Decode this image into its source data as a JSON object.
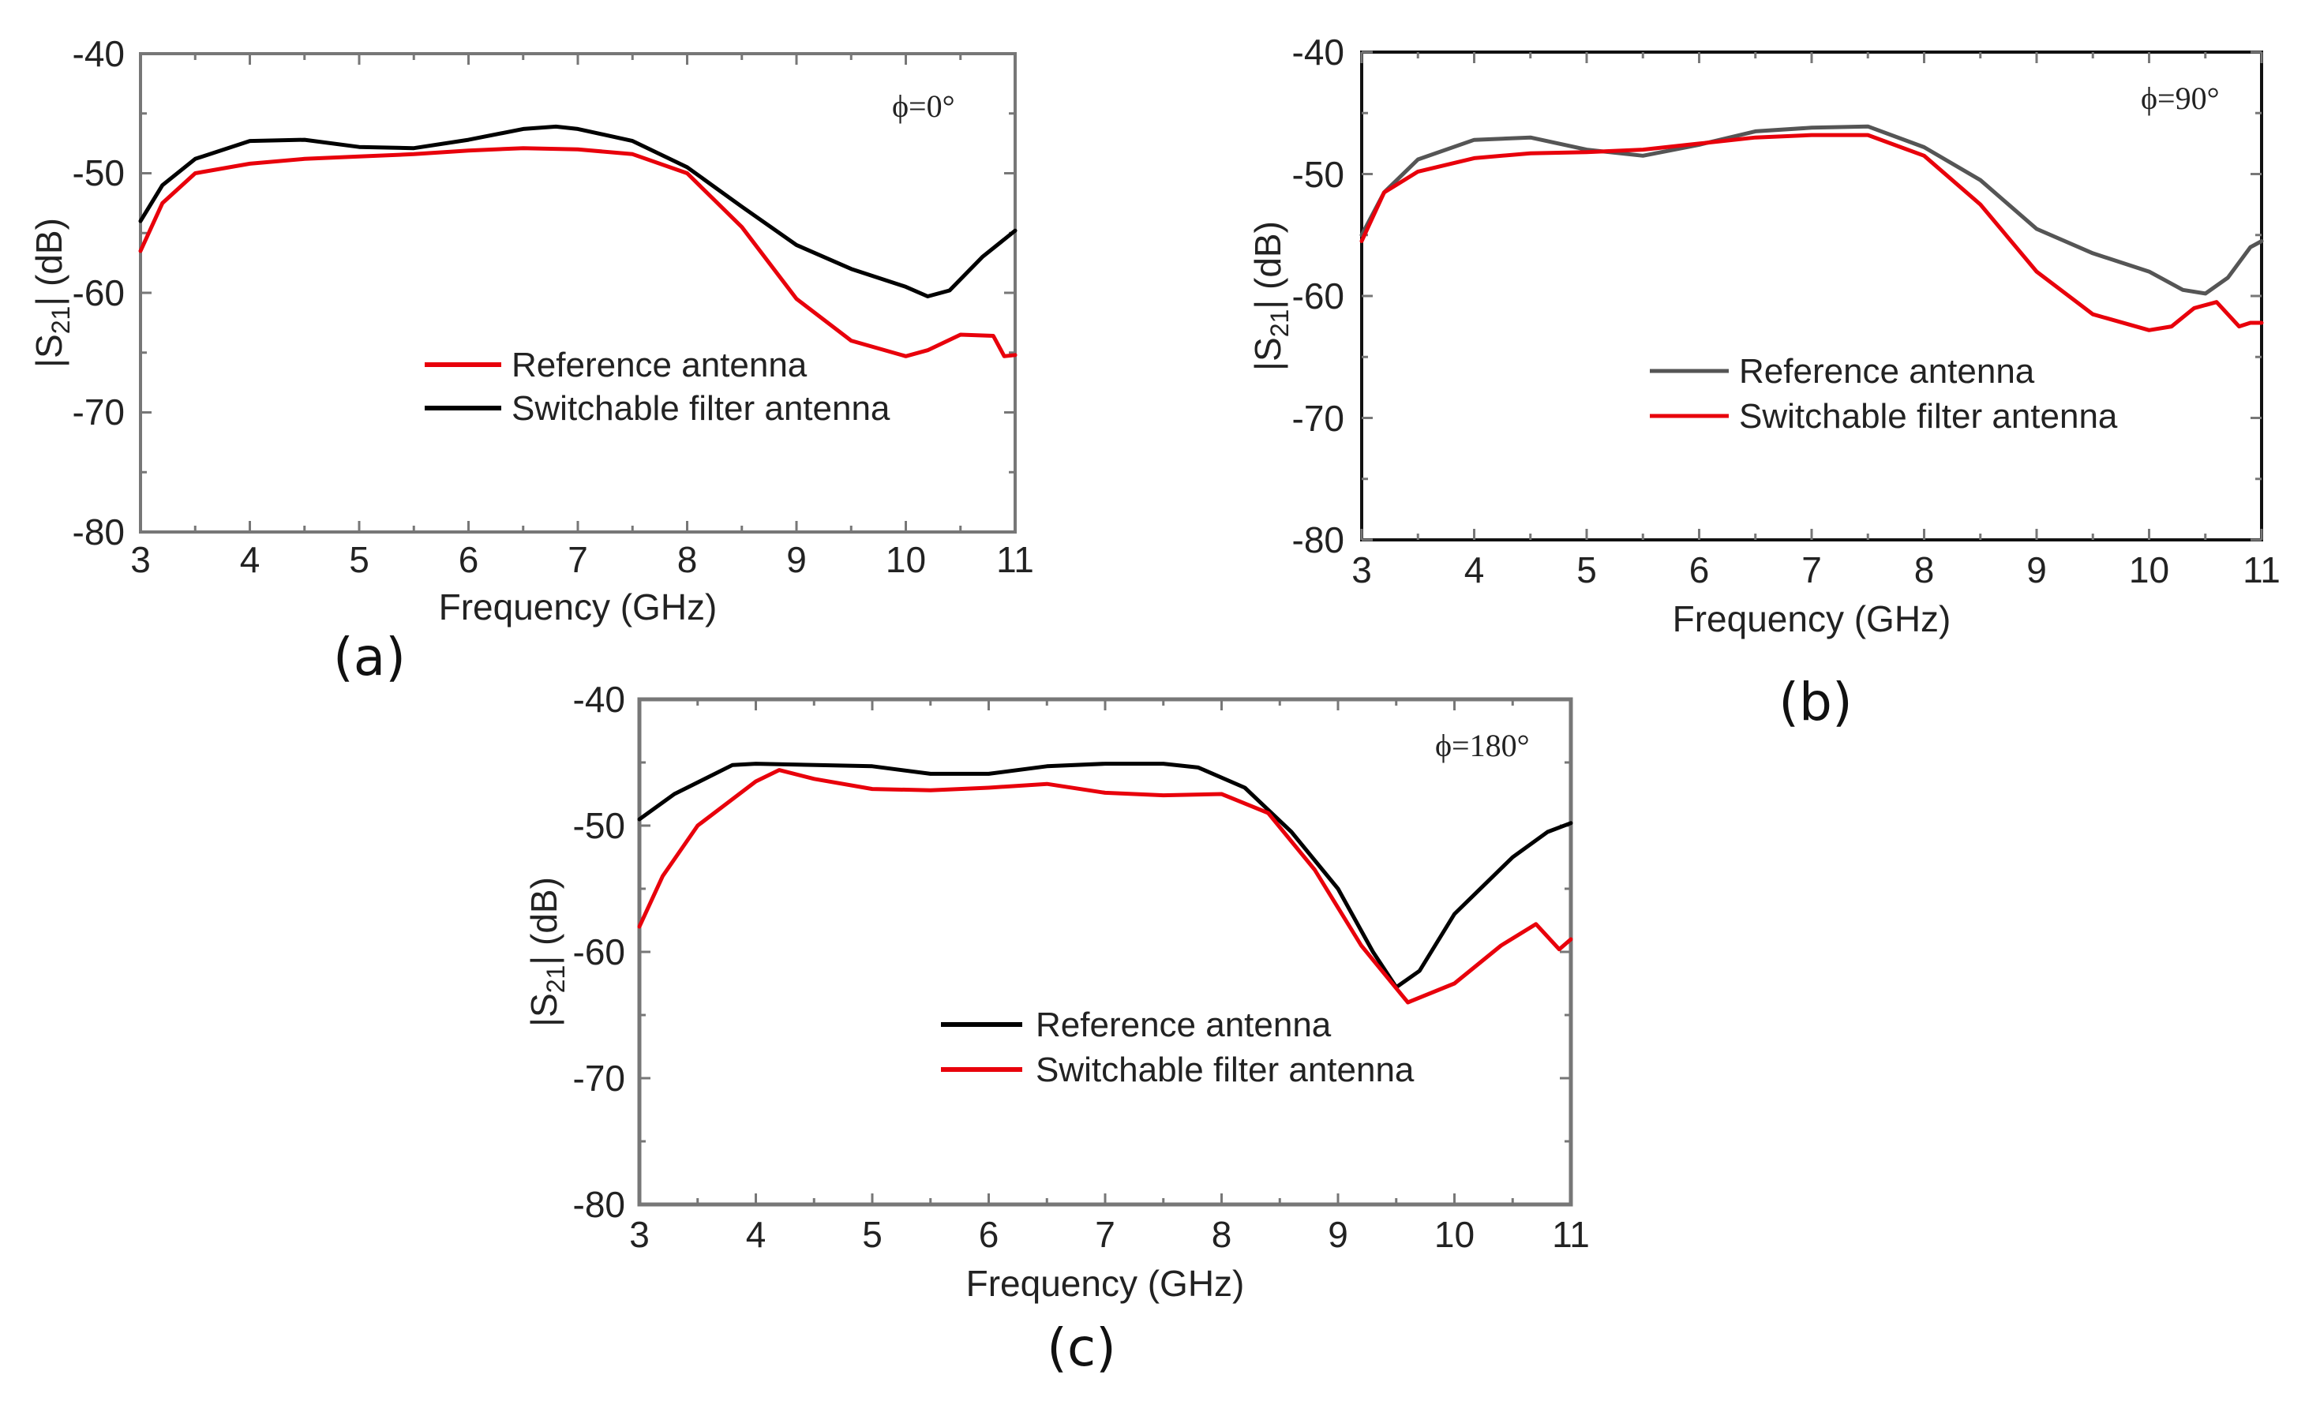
{
  "chart_data": [
    {
      "type": "line",
      "panel_label": "(a)",
      "annotation": "ϕ=0°",
      "xlabel": "Frequency (GHz)",
      "ylabel": "|S21| (dB)",
      "xlim": [
        3,
        11
      ],
      "ylim": [
        -80,
        -40
      ],
      "xticks": [
        "3",
        "4",
        "5",
        "6",
        "7",
        "8",
        "9",
        "10",
        "11"
      ],
      "yticks": [
        "-80",
        "-70",
        "-60",
        "-50",
        "-40"
      ],
      "series": [
        {
          "name": "Reference antenna",
          "color": "#e8000b",
          "x": [
            3.0,
            3.2,
            3.5,
            4.0,
            4.5,
            5.0,
            5.5,
            6.0,
            6.5,
            7.0,
            7.5,
            8.0,
            8.5,
            9.0,
            9.5,
            10.0,
            10.2,
            10.5,
            10.8,
            10.9,
            11.0
          ],
          "y": [
            -56.5,
            -52.5,
            -50.0,
            -49.2,
            -48.8,
            -48.6,
            -48.4,
            -48.1,
            -47.9,
            -48.0,
            -48.4,
            -50.0,
            -54.5,
            -60.5,
            -64.0,
            -65.3,
            -64.8,
            -63.5,
            -63.6,
            -65.3,
            -65.2
          ]
        },
        {
          "name": "Switchable filter antenna",
          "color": "#000000",
          "x": [
            3.0,
            3.2,
            3.5,
            4.0,
            4.5,
            5.0,
            5.5,
            6.0,
            6.5,
            6.8,
            7.0,
            7.5,
            8.0,
            8.5,
            9.0,
            9.5,
            10.0,
            10.2,
            10.4,
            10.7,
            11.0
          ],
          "y": [
            -54.0,
            -51.0,
            -48.8,
            -47.3,
            -47.2,
            -47.8,
            -47.9,
            -47.2,
            -46.3,
            -46.1,
            -46.3,
            -47.3,
            -49.5,
            -52.8,
            -56.0,
            -58.0,
            -59.5,
            -60.3,
            -59.8,
            -57.0,
            -54.8
          ]
        }
      ]
    },
    {
      "type": "line",
      "panel_label": "(b)",
      "annotation": "ϕ=90°",
      "xlabel": "Frequency (GHz)",
      "ylabel": "|S21| (dB)",
      "xlim": [
        3,
        11
      ],
      "ylim": [
        -80,
        -40
      ],
      "xticks": [
        "3",
        "4",
        "5",
        "6",
        "7",
        "8",
        "9",
        "10",
        "11"
      ],
      "yticks": [
        "-80",
        "-70",
        "-60",
        "-50",
        "-40"
      ],
      "series": [
        {
          "name": "Reference antenna",
          "color": "#555555",
          "x": [
            3.0,
            3.2,
            3.5,
            4.0,
            4.5,
            5.0,
            5.5,
            6.0,
            6.5,
            7.0,
            7.5,
            8.0,
            8.5,
            9.0,
            9.5,
            10.0,
            10.3,
            10.5,
            10.7,
            10.9,
            11.0
          ],
          "y": [
            -55.0,
            -51.5,
            -48.8,
            -47.2,
            -47.0,
            -48.0,
            -48.5,
            -47.6,
            -46.5,
            -46.2,
            -46.1,
            -47.8,
            -50.5,
            -54.5,
            -56.5,
            -58.0,
            -59.5,
            -59.8,
            -58.5,
            -56.0,
            -55.5
          ]
        },
        {
          "name": "Switchable filter antenna",
          "color": "#e8000b",
          "x": [
            3.0,
            3.2,
            3.5,
            4.0,
            4.5,
            5.0,
            5.5,
            6.0,
            6.5,
            7.0,
            7.5,
            8.0,
            8.5,
            9.0,
            9.5,
            10.0,
            10.2,
            10.4,
            10.6,
            10.8,
            10.9,
            11.0
          ],
          "y": [
            -55.5,
            -51.5,
            -49.8,
            -48.7,
            -48.3,
            -48.2,
            -48.0,
            -47.5,
            -47.0,
            -46.8,
            -46.8,
            -48.5,
            -52.5,
            -58.0,
            -61.5,
            -62.8,
            -62.5,
            -61.0,
            -60.5,
            -62.5,
            -62.2,
            -62.2
          ]
        }
      ]
    },
    {
      "type": "line",
      "panel_label": "(c)",
      "annotation": "ϕ=180°",
      "xlabel": "Frequency (GHz)",
      "ylabel": "|S21| (dB)",
      "xlim": [
        3,
        11
      ],
      "ylim": [
        -80,
        -40
      ],
      "xticks": [
        "3",
        "4",
        "5",
        "6",
        "7",
        "8",
        "9",
        "10",
        "11"
      ],
      "yticks": [
        "-80",
        "-70",
        "-60",
        "-50",
        "-40"
      ],
      "series": [
        {
          "name": "Reference antenna",
          "color": "#000000",
          "x": [
            3.0,
            3.3,
            3.8,
            4.0,
            5.0,
            5.5,
            6.0,
            6.5,
            7.0,
            7.5,
            7.8,
            8.2,
            8.6,
            9.0,
            9.3,
            9.5,
            9.7,
            10.0,
            10.5,
            10.8,
            11.0
          ],
          "y": [
            -49.5,
            -47.5,
            -45.2,
            -45.1,
            -45.3,
            -45.9,
            -45.9,
            -45.3,
            -45.1,
            -45.1,
            -45.4,
            -47.0,
            -50.5,
            -55.0,
            -60.0,
            -62.8,
            -61.5,
            -57.0,
            -52.5,
            -50.5,
            -49.8
          ]
        },
        {
          "name": "Switchable filter antenna",
          "color": "#e8000b",
          "x": [
            3.0,
            3.2,
            3.5,
            4.0,
            4.2,
            4.5,
            5.0,
            5.5,
            6.0,
            6.5,
            7.0,
            7.5,
            8.0,
            8.4,
            8.8,
            9.2,
            9.6,
            10.0,
            10.4,
            10.7,
            10.9,
            11.0
          ],
          "y": [
            -58.0,
            -54.0,
            -50.0,
            -46.5,
            -45.6,
            -46.3,
            -47.1,
            -47.2,
            -47.0,
            -46.7,
            -47.4,
            -47.6,
            -47.5,
            -49.0,
            -53.5,
            -59.5,
            -64.0,
            -62.5,
            -59.5,
            -57.8,
            -59.8,
            -59.0
          ]
        }
      ]
    }
  ]
}
